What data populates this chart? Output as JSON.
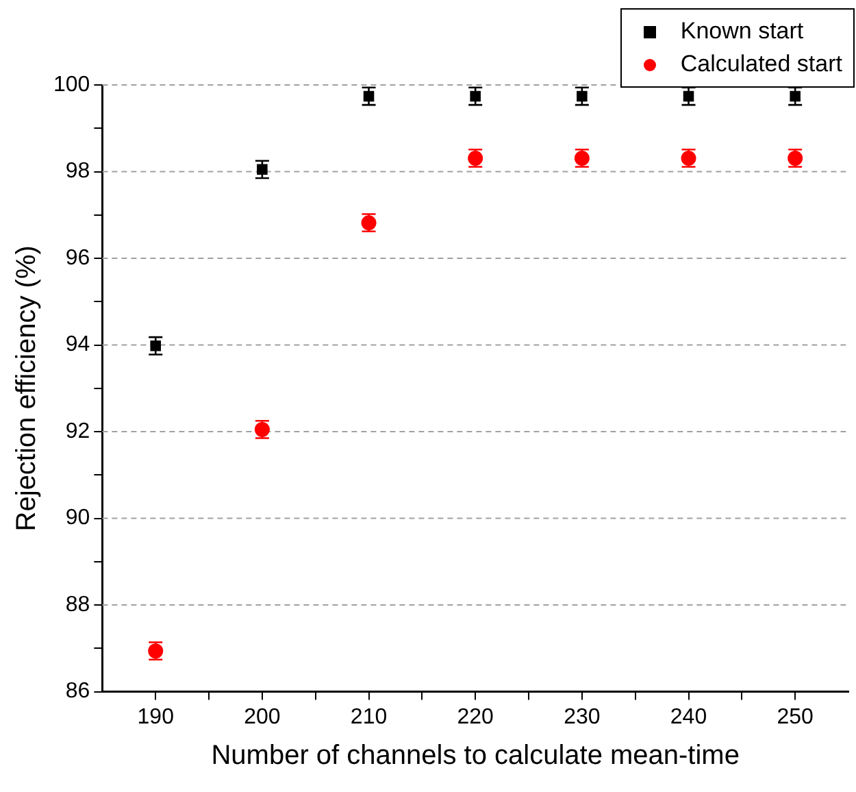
{
  "chart_data": {
    "type": "scatter",
    "xlabel": "Number of channels to calculate mean-time",
    "ylabel": "Rejection efficiency (%)",
    "x": [
      190,
      200,
      210,
      220,
      230,
      240,
      250
    ],
    "series": [
      {
        "name": "Known start",
        "color": "#000000",
        "marker": "square",
        "values": [
          93.98,
          98.05,
          99.74,
          99.74,
          99.74,
          99.74,
          99.74
        ],
        "errors": [
          0.2,
          0.2,
          0.2,
          0.2,
          0.2,
          0.2,
          0.2
        ]
      },
      {
        "name": "Calculated start",
        "color": "#ff0000",
        "marker": "circle",
        "values": [
          86.94,
          92.05,
          96.82,
          98.31,
          98.31,
          98.31,
          98.31
        ],
        "errors": [
          0.2,
          0.2,
          0.2,
          0.2,
          0.2,
          0.2,
          0.2
        ]
      }
    ],
    "xlim": [
      185,
      255
    ],
    "xticks": [
      190,
      {
        "value": 195,
        "label": null
      },
      200,
      {
        "value": 205,
        "label": null
      },
      210,
      {
        "value": 215,
        "label": null
      },
      220,
      {
        "value": 225,
        "label": null
      },
      230,
      {
        "value": 235,
        "label": null
      },
      240,
      {
        "value": 245,
        "label": null
      },
      250
    ],
    "ylim": [
      86,
      100
    ],
    "yticks": [
      86,
      {
        "value": 87,
        "label": null
      },
      88,
      {
        "value": 89,
        "label": null
      },
      90,
      {
        "value": 91,
        "label": null
      },
      92,
      {
        "value": 93,
        "label": null
      },
      94,
      {
        "value": 95,
        "label": null
      },
      96,
      {
        "value": 97,
        "label": null
      },
      98,
      {
        "value": 99,
        "label": null
      },
      100
    ],
    "grid": "y",
    "legend": "top right"
  }
}
